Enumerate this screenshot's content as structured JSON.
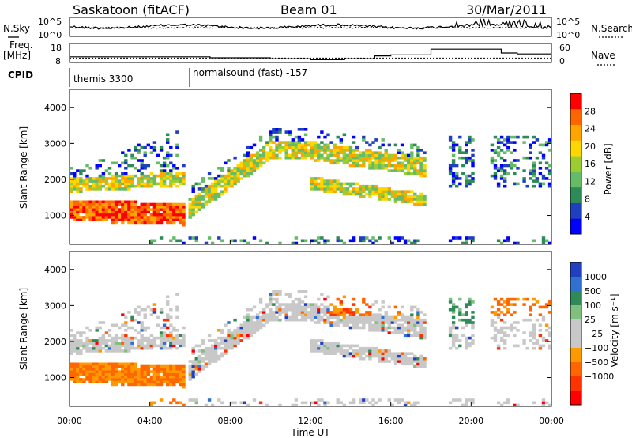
{
  "header": {
    "station": "Saskatoon (fitACF)",
    "beam": "Beam 01",
    "date": "30/Mar/2011"
  },
  "strips": {
    "nsky_label": "N.Sky",
    "nsearch_label": "N.Search",
    "noise_ticks": [
      "10^5",
      "10^0"
    ],
    "freq_label": "Freq.",
    "freq_unit": "[MHz]",
    "freq_ticks": [
      "18",
      "8"
    ],
    "nave_label": "Nave",
    "nave_ticks": [
      "60",
      "0"
    ],
    "cpid_label": "CPID",
    "cpid_segments": [
      {
        "start_hour": 0.0,
        "text": "themis 3300"
      },
      {
        "start_hour": 6.0,
        "text": "normalsound (fast) -157"
      }
    ]
  },
  "colors": {
    "power": [
      "#0000ff",
      "#1f3fbf",
      "#2e8b57",
      "#66bb66",
      "#9acd32",
      "#ffd700",
      "#ffa500",
      "#ff6600",
      "#ff0000"
    ],
    "velocity_scale": [
      "#2040c0",
      "#3070d0",
      "#2e8b57",
      "#7fbf7f",
      "#c8c8c8",
      "#c8c8c8",
      "#ff9900",
      "#ff6600",
      "#ff3300",
      "#ff0000"
    ]
  },
  "chart_data": [
    {
      "type": "heatmap",
      "title": "",
      "xlabel": "",
      "ylabel": "Slant Range [km]",
      "x_range_hours": [
        0,
        24
      ],
      "ylim": [
        200,
        4500
      ],
      "yticks": [
        1000,
        2000,
        3000,
        4000
      ],
      "colorbar": {
        "label": "Power [dB]",
        "ticks": [
          4,
          8,
          12,
          16,
          20,
          24,
          28
        ],
        "range": [
          0,
          32
        ]
      }
    },
    {
      "type": "heatmap",
      "title": "",
      "xlabel": "Time UT",
      "ylabel": "Slant Range [km]",
      "x_range_hours": [
        0,
        24
      ],
      "xticks": [
        "00:00",
        "04:00",
        "08:00",
        "12:00",
        "16:00",
        "20:00",
        "00:00"
      ],
      "ylim": [
        200,
        4500
      ],
      "yticks": [
        1000,
        2000,
        3000,
        4000
      ],
      "colorbar": {
        "label": "Velocity [m s⁻¹]",
        "ticks": [
          "1000",
          "500",
          "100",
          "25",
          "−25",
          "−100",
          "−500",
          "−1000"
        ]
      }
    }
  ]
}
